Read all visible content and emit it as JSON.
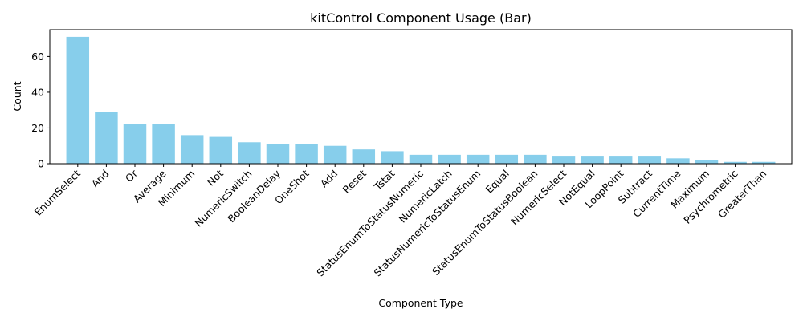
{
  "chart_data": {
    "type": "bar",
    "title": "kitControl Component Usage (Bar)",
    "xlabel": "Component Type",
    "ylabel": "Count",
    "ylim": [
      0,
      75
    ],
    "yticks": [
      0,
      20,
      40,
      60
    ],
    "bar_color": "#87ceeb",
    "grid": false,
    "categories": [
      "EnumSelect",
      "And",
      "Or",
      "Average",
      "Minimum",
      "Not",
      "NumericSwitch",
      "BooleanDelay",
      "OneShot",
      "Add",
      "Reset",
      "Tstat",
      "StatusEnumToStatusNumeric",
      "NumericLatch",
      "StatusNumericToStatusEnum",
      "Equal",
      "StatusEnumToStatusBoolean",
      "NumericSelect",
      "NotEqual",
      "LoopPoint",
      "Subtract",
      "CurrentTime",
      "Maximum",
      "Psychrometric",
      "GreaterThan"
    ],
    "values": [
      71,
      29,
      22,
      22,
      16,
      15,
      12,
      11,
      11,
      10,
      8,
      7,
      5,
      5,
      5,
      5,
      5,
      4,
      4,
      4,
      4,
      3,
      2,
      1,
      1
    ]
  }
}
